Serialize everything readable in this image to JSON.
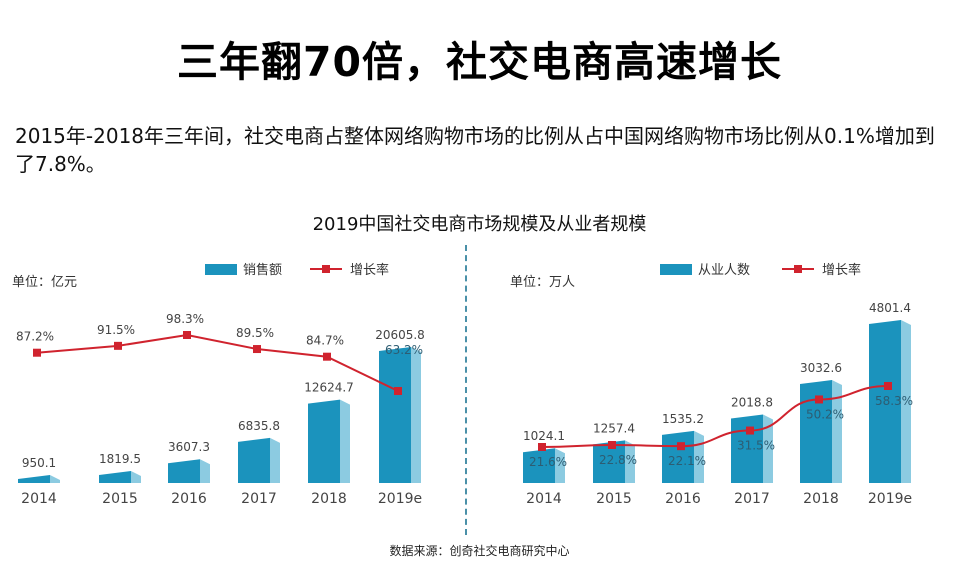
{
  "title": "三年翻70倍，社交电商高速增长",
  "description": "2015年-2018年三年间，社交电商占整体网络购物市场的比例从占中国网络购物市场比例从0.1%增加到了7.8%。",
  "chart_title": "2019中国社交电商市场规模及从业者规模",
  "source": "数据来源：创奇社交电商研究中心",
  "colors": {
    "bar_front": "#1b93bd",
    "bar_side": "#8ccbe1",
    "line": "#d0232e",
    "divider": "#4a90a8"
  },
  "chart_data": [
    {
      "type": "bar+line",
      "unit_label": "单位：亿元",
      "categories": [
        "2014",
        "2015",
        "2016",
        "2017",
        "2018",
        "2019e"
      ],
      "series": [
        {
          "name": "销售额",
          "kind": "bar",
          "values": [
            950.1,
            1819.5,
            3607.3,
            6835.8,
            12624.7,
            20605.8
          ],
          "labels": [
            "950.1",
            "1819.5",
            "3607.3",
            "6835.8",
            "12624.7",
            "20605.8"
          ]
        },
        {
          "name": "增长率",
          "kind": "line",
          "values": [
            87.2,
            91.5,
            98.3,
            89.5,
            84.7,
            63.2
          ],
          "labels": [
            "87.2%",
            "91.5%",
            "98.3%",
            "89.5%",
            "84.7%",
            "63.2%"
          ]
        }
      ],
      "legend": [
        "销售额",
        "增长率"
      ],
      "legend_position": "top"
    },
    {
      "type": "bar+line",
      "unit_label": "单位：万人",
      "categories": [
        "2014",
        "2015",
        "2016",
        "2017",
        "2018",
        "2019e"
      ],
      "series": [
        {
          "name": "从业人数",
          "kind": "bar",
          "values": [
            1024.1,
            1257.4,
            1535.2,
            2018.8,
            3032.6,
            4801.4
          ],
          "labels": [
            "1024.1",
            "1257.4",
            "1535.2",
            "2018.8",
            "3032.6",
            "4801.4"
          ]
        },
        {
          "name": "增长率",
          "kind": "line",
          "values": [
            21.6,
            22.8,
            22.1,
            31.5,
            50.2,
            58.3
          ],
          "labels": [
            "21.6%",
            "22.8%",
            "22.1%",
            "31.5%",
            "50.2%",
            "58.3%"
          ]
        }
      ],
      "legend": [
        "从业人数",
        "增长率"
      ],
      "legend_position": "top"
    }
  ]
}
